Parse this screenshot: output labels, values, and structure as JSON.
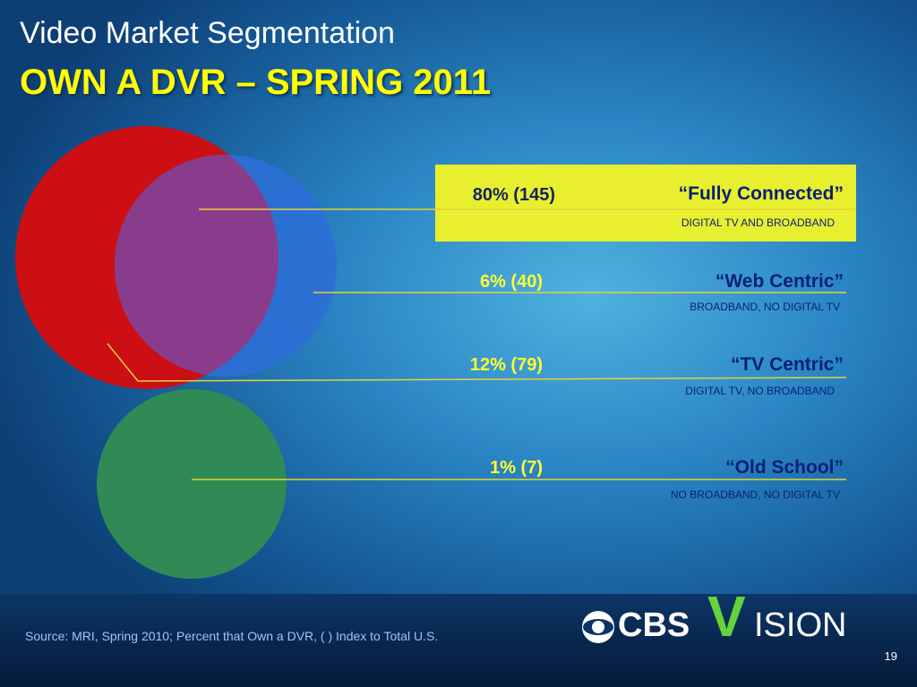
{
  "title": {
    "line1": "Video Market Segmentation",
    "line2": "OWN A DVR – SPRING 2011"
  },
  "segments": [
    {
      "percent": "80% (145)",
      "name": "“Fully Connected”",
      "description": "DIGITAL TV AND BROADBAND",
      "highlighted": true
    },
    {
      "percent": "6% (40)",
      "name": "“Web Centric”",
      "description": "BROADBAND, NO DIGITAL TV",
      "highlighted": false
    },
    {
      "percent": "12% (79)",
      "name": "“TV Centric”",
      "description": "DIGITAL TV, NO BROADBAND",
      "highlighted": false
    },
    {
      "percent": "1% (7)",
      "name": "“Old School”",
      "description": "NO BROADBAND, NO DIGITAL TV",
      "highlighted": false
    }
  ],
  "colors": {
    "digital_tv_circle": "#cc0f14",
    "broadband_circle": "#2e6fd6",
    "overlap": "#8a3c8c",
    "old_school_circle": "#2f8a55",
    "highlight": "#e8ef2f",
    "percent_text": "#ffff33",
    "label_text": "#0a1f78"
  },
  "footer": {
    "source": "Source: MRI, Spring 2010; Percent that Own a DVR, (  ) Index to Total U.S.",
    "page_number": "19",
    "logo_left": "CBS",
    "logo_right": "ISION",
    "logo_v": "V"
  }
}
